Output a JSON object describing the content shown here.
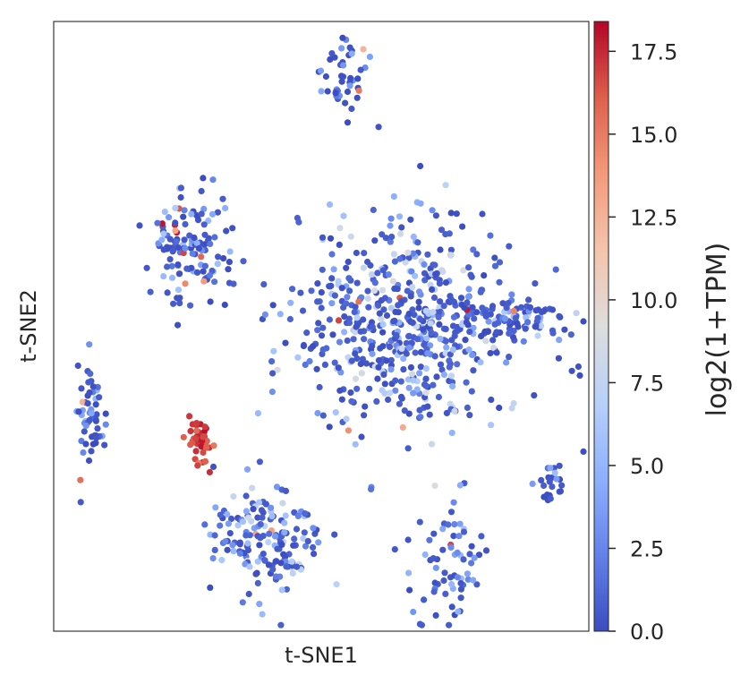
{
  "chart_data": {
    "type": "scatter",
    "title": "",
    "xlabel": "t-SNE1",
    "ylabel": "t-SNE2",
    "x_ticks": false,
    "y_ticks": false,
    "grid": false,
    "colorbar": {
      "label": "log2(1+TPM)",
      "colormap": "coolwarm",
      "range": [
        0,
        18.4
      ],
      "ticks": [
        0.0,
        2.5,
        5.0,
        7.5,
        10.0,
        12.5,
        15.0,
        17.5
      ],
      "tick_labels": [
        "0.0",
        "2.5",
        "5.0",
        "7.5",
        "10.0",
        "12.5",
        "15.0",
        "17.5"
      ]
    },
    "clusters": [
      {
        "cx": 0.544,
        "cy": 0.909,
        "sx": 0.025,
        "sy": 0.035,
        "n": 45,
        "mean": 1.6,
        "high_fraction": 0.04
      },
      {
        "cx": 0.258,
        "cy": 0.634,
        "sx": 0.045,
        "sy": 0.055,
        "n": 130,
        "mean": 2.2,
        "high_fraction": 0.03
      },
      {
        "cx": 0.66,
        "cy": 0.5,
        "sx": 0.11,
        "sy": 0.09,
        "n": 560,
        "mean": 3.0,
        "high_fraction": 0.01
      },
      {
        "cx": 0.848,
        "cy": 0.515,
        "sx": 0.06,
        "sy": 0.018,
        "n": 90,
        "mean": 2.6,
        "high_fraction": 0.01
      },
      {
        "cx": 0.065,
        "cy": 0.385,
        "sx": 0.012,
        "sy": 0.035,
        "n": 30,
        "mean": 1.8,
        "high_fraction": 0.08
      },
      {
        "cx": 0.07,
        "cy": 0.315,
        "sx": 0.012,
        "sy": 0.025,
        "n": 25,
        "mean": 1.4,
        "high_fraction": 0.0
      },
      {
        "cx": 0.275,
        "cy": 0.308,
        "sx": 0.015,
        "sy": 0.018,
        "n": 45,
        "mean": 16.8,
        "high_fraction": 1.0
      },
      {
        "cx": 0.927,
        "cy": 0.25,
        "sx": 0.012,
        "sy": 0.018,
        "n": 22,
        "mean": 2.0,
        "high_fraction": 0.0
      },
      {
        "cx": 0.395,
        "cy": 0.15,
        "sx": 0.055,
        "sy": 0.045,
        "n": 170,
        "mean": 2.8,
        "high_fraction": 0.02
      },
      {
        "cx": 0.73,
        "cy": 0.11,
        "sx": 0.03,
        "sy": 0.05,
        "n": 70,
        "mean": 2.0,
        "high_fraction": 0.02
      },
      {
        "cx": 0.593,
        "cy": 0.232,
        "sx": 0.003,
        "sy": 0.003,
        "n": 2,
        "mean": 3.0,
        "high_fraction": 0.0
      }
    ]
  }
}
